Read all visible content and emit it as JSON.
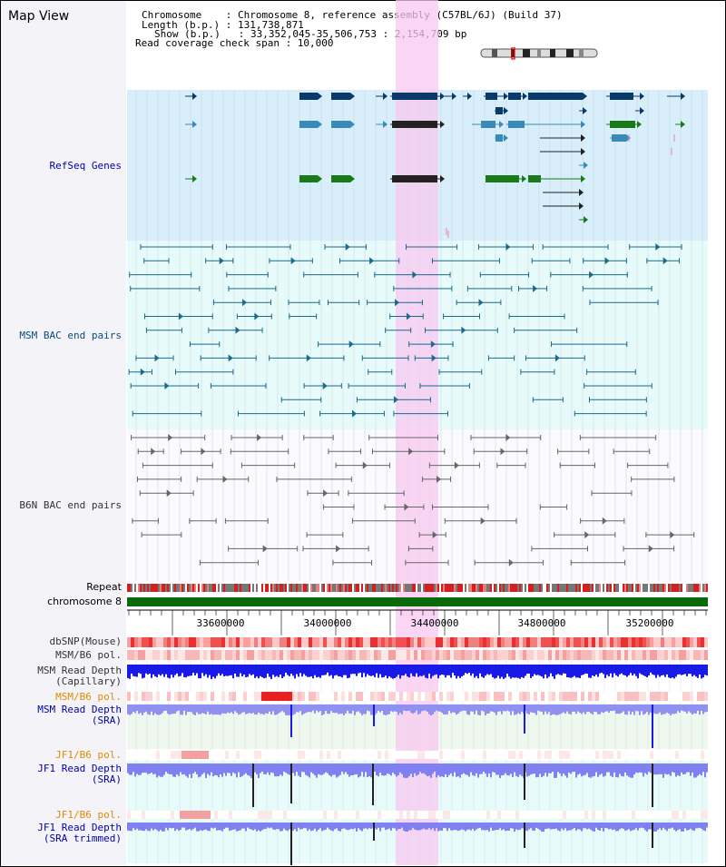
{
  "header": {
    "title": "Map View",
    "lines": [
      "Chromosome    : Chromosome 8, reference assembly (C57BL/6J) (Build 37)",
      "Length (b.p.) : 131,738,871",
      "Show (b.p.)   : 33,352,045-35,506,753 : 2,154,709 bp",
      "Read coverage check span : 10,000"
    ]
  },
  "tracks": {
    "refseq": "RefSeq Genes",
    "msm_bac": "MSM BAC end pairs",
    "b6n_bac": "B6N BAC end pairs",
    "repeat": "Repeat",
    "chromosome": "chromosome 8",
    "dbsnp": "dbSNP(Mouse)",
    "msm_b6_pol": "MSM/B6 pol.",
    "msm_depth_cap": "MSM Read Depth\n(Capillary)",
    "msm_b6_pol2": "MSM/B6 pol.",
    "msm_depth_sra": "MSM Read Depth\n(SRA)",
    "jf1_b6_pol": "JF1/B6 pol.",
    "jf1_depth_sra": "JF1 Read Depth\n(SRA)",
    "jf1_b6_pol2": "JF1/B6 pol.",
    "jf1_depth_trim": "JF1 Read Depth\n(SRA trimmed)"
  },
  "axis": {
    "ticks": [
      "33600000",
      "34000000",
      "34400000",
      "34800000",
      "35200000"
    ]
  },
  "colors": {
    "refseq_bg": "#d8eefa",
    "bac_bg": "#e8fbfb",
    "highlight": "#f8c8f0",
    "chrom_bar": "#0a6a0a",
    "depth_blue": "#1a1ae6",
    "depth_light": "#8c8cf0"
  }
}
